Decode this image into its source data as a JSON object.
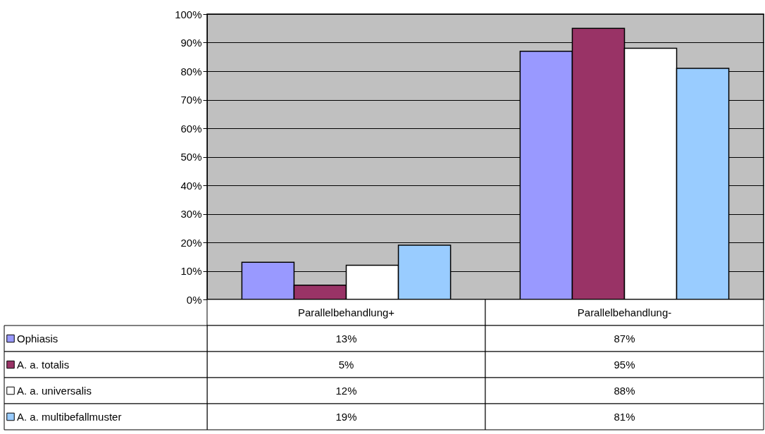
{
  "chart_data": {
    "type": "bar",
    "categories": [
      "Parallelbehandlung+",
      "Parallelbehandlung-"
    ],
    "series": [
      {
        "name": "Ophiasis",
        "color": "#9999ff",
        "values": [
          13,
          87
        ],
        "value_labels": [
          "13%",
          "87%"
        ]
      },
      {
        "name": "A. a. totalis",
        "color": "#993366",
        "values": [
          5,
          95
        ],
        "value_labels": [
          "5%",
          "95%"
        ]
      },
      {
        "name": "A. a. universalis",
        "color": "#ffffff",
        "values": [
          12,
          88
        ],
        "value_labels": [
          "12%",
          "88%"
        ]
      },
      {
        "name": "A. a. multibefallmuster",
        "color": "#99ccff",
        "values": [
          19,
          81
        ],
        "value_labels": [
          "19%",
          "81%"
        ]
      }
    ],
    "ylim": [
      0,
      100
    ],
    "yticks": [
      {
        "value": 0,
        "label": "0%"
      },
      {
        "value": 10,
        "label": "10%"
      },
      {
        "value": 20,
        "label": "20%"
      },
      {
        "value": 30,
        "label": "30%"
      },
      {
        "value": 40,
        "label": "40%"
      },
      {
        "value": 50,
        "label": "50%"
      },
      {
        "value": 60,
        "label": "60%"
      },
      {
        "value": 70,
        "label": "70%"
      },
      {
        "value": 80,
        "label": "80%"
      },
      {
        "value": 90,
        "label": "90%"
      },
      {
        "value": 100,
        "label": "100%"
      }
    ],
    "grid": "y",
    "legend": "bottom left"
  }
}
